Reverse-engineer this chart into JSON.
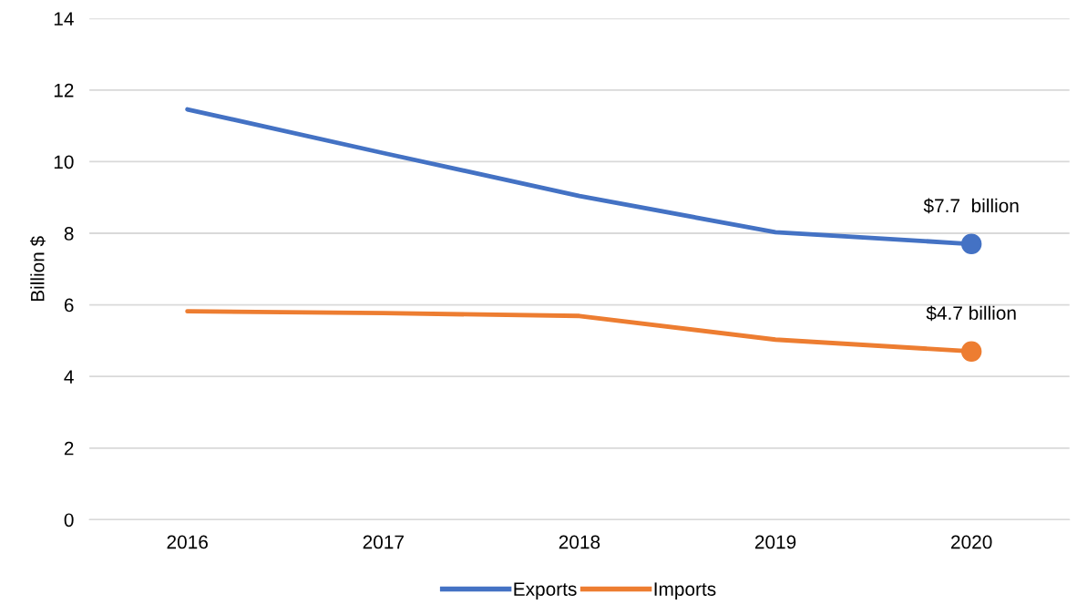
{
  "chart_data": {
    "type": "line",
    "ylabel": "Billion $",
    "categories": [
      "2016",
      "2017",
      "2018",
      "2019",
      "2020"
    ],
    "series": [
      {
        "name": "Exports",
        "color": "#4472c4",
        "values": [
          11.46,
          10.24,
          9.04,
          8.03,
          7.7
        ]
      },
      {
        "name": "Imports",
        "color": "#ed7d31",
        "values": [
          5.82,
          5.77,
          5.69,
          5.03,
          4.7
        ]
      },
      {
        "type": "scatter",
        "color": "#4472c4",
        "values": [
          null,
          null,
          null,
          null,
          7.7
        ],
        "marker": "circle"
      },
      {
        "type": "scatter",
        "color": "#ed7d31",
        "values": [
          null,
          null,
          null,
          null,
          4.7
        ],
        "marker": "circle"
      }
    ],
    "annotations": [
      {
        "text": "$7.7  billion",
        "x": "2020",
        "y": 7.7
      },
      {
        "text": "$4.7 billion",
        "x": "2020",
        "y": 4.7
      }
    ],
    "ylim": [
      0,
      14
    ],
    "yticks": [
      0,
      2,
      4,
      6,
      8,
      10,
      12,
      14
    ],
    "grid": "y",
    "legend": "bottom",
    "marker": "none"
  }
}
